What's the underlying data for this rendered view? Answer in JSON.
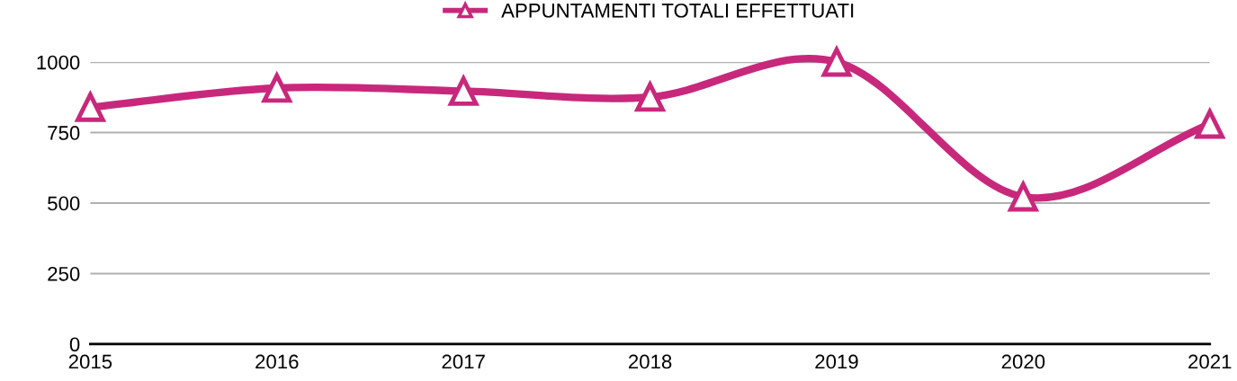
{
  "chart_data": {
    "type": "line",
    "x": [
      2015,
      2016,
      2017,
      2018,
      2019,
      2020,
      2021
    ],
    "series": [
      {
        "name": "APPUNTAMENTI TOTALI EFFETTUATI",
        "color": "#c8287c",
        "values": [
          840,
          908,
          897,
          876,
          1000,
          522,
          780
        ]
      }
    ],
    "xlim": [
      2015,
      2021
    ],
    "xticks": [
      2015,
      2016,
      2017,
      2018,
      2019,
      2020,
      2021
    ],
    "ylim": [
      0,
      1000
    ],
    "yticks": [
      0,
      250,
      500,
      750,
      1000
    ],
    "grid": "y",
    "legend": "top",
    "marker": "triangle",
    "line_style": "solid"
  }
}
